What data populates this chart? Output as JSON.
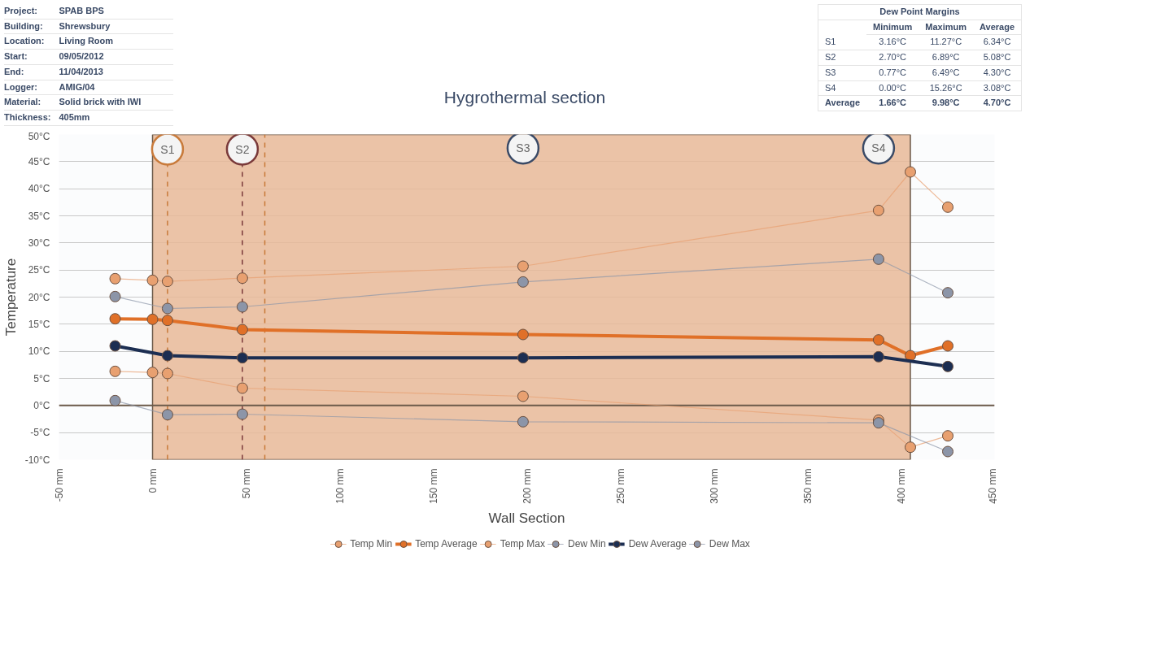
{
  "chart_data": {
    "type": "line",
    "title": "Hygrothermal section",
    "xlabel": "Wall Section",
    "ylabel": "Temperature",
    "xlim": [
      -50,
      450
    ],
    "ylim": [
      -10,
      50
    ],
    "xticks": [
      {
        "value": -50,
        "label": "-50 mm"
      },
      {
        "value": 0,
        "label": "0 mm"
      },
      {
        "value": 50,
        "label": "50 mm"
      },
      {
        "value": 100,
        "label": "100 mm"
      },
      {
        "value": 150,
        "label": "150 mm"
      },
      {
        "value": 200,
        "label": "200 mm"
      },
      {
        "value": 250,
        "label": "250 mm"
      },
      {
        "value": 300,
        "label": "300 mm"
      },
      {
        "value": 350,
        "label": "350 mm"
      },
      {
        "value": 400,
        "label": "400 mm"
      },
      {
        "value": 450,
        "label": "450 mm"
      }
    ],
    "yticks": [
      {
        "value": -10,
        "label": "-10°C"
      },
      {
        "value": -5,
        "label": "-5°C"
      },
      {
        "value": 0,
        "label": "0°C"
      },
      {
        "value": 5,
        "label": "5°C"
      },
      {
        "value": 10,
        "label": "10°C"
      },
      {
        "value": 15,
        "label": "15°C"
      },
      {
        "value": 20,
        "label": "20°C"
      },
      {
        "value": 25,
        "label": "25°C"
      },
      {
        "value": 30,
        "label": "30°C"
      },
      {
        "value": 35,
        "label": "35°C"
      },
      {
        "value": 40,
        "label": "40°C"
      },
      {
        "value": 45,
        "label": "45°C"
      },
      {
        "value": 50,
        "label": "50°C"
      }
    ],
    "grid": "y",
    "legend": "bottom",
    "marker": "circle",
    "line_style": "solid",
    "series": [
      {
        "name": "Temp Min",
        "color": "#e8a070",
        "x": [
          -20,
          0,
          8,
          48,
          198,
          388,
          405,
          425
        ],
        "values": [
          6.3,
          6.1,
          5.9,
          3.2,
          1.7,
          -2.7,
          -7.7,
          -5.6
        ]
      },
      {
        "name": "Temp Average",
        "color": "#e07028",
        "x": [
          -20,
          0,
          8,
          48,
          198,
          388,
          405,
          425
        ],
        "values": [
          16.0,
          15.9,
          15.7,
          14.0,
          13.1,
          12.1,
          9.2,
          11.0
        ]
      },
      {
        "name": "Temp Max",
        "color": "#e8a070",
        "x": [
          -20,
          0,
          8,
          48,
          198,
          388,
          405,
          425
        ],
        "values": [
          23.4,
          23.1,
          22.9,
          23.5,
          25.7,
          36.0,
          43.1,
          36.6
        ]
      },
      {
        "name": "Dew Min",
        "color": "#8c95a8",
        "x": [
          -20,
          8,
          48,
          198,
          388,
          425
        ],
        "values": [
          0.9,
          -1.7,
          -1.6,
          -3.0,
          -3.2,
          -8.5
        ]
      },
      {
        "name": "Dew Average",
        "color": "#1c2e52",
        "x": [
          -20,
          8,
          48,
          198,
          388,
          425
        ],
        "values": [
          11.0,
          9.2,
          8.8,
          8.8,
          9.0,
          7.2
        ]
      },
      {
        "name": "Dew Max",
        "color": "#8c95a8",
        "x": [
          -20,
          8,
          48,
          198,
          388,
          425
        ],
        "values": [
          20.1,
          17.9,
          18.2,
          22.8,
          27.0,
          20.8
        ]
      }
    ],
    "bands": [
      {
        "axis": "x",
        "from": 0,
        "to": 405,
        "color": "#e8b898"
      }
    ],
    "ref_lines": [
      {
        "axis": "x",
        "value": 8,
        "label": "S1",
        "color": "#c87a3a",
        "line_style": "dashed"
      },
      {
        "axis": "x",
        "value": 48,
        "label": "S2",
        "color": "#7a3a3a",
        "line_style": "dashed"
      },
      {
        "axis": "x",
        "value": 60,
        "color": "#c87a3a",
        "line_style": "dashed"
      },
      {
        "axis": "y",
        "value": 0,
        "color": "#6b5a4a",
        "line_style": "solid"
      }
    ],
    "annotations": [
      "Project: SPAB BPS",
      "Building: Shrewsbury",
      "Location: Living Room",
      "Start: 09/05/2012",
      "End: 11/04/2013",
      "Logger: AMIG/04",
      "Material: Solid brick with IWI",
      "Thickness: 405mm",
      "Dew Point Margins",
      "Minimum",
      "Maximum",
      "Average",
      "S1",
      "3.16°C",
      "11.27°C",
      "6.34°C",
      "S2",
      "2.70°C",
      "6.89°C",
      "5.08°C",
      "S3",
      "0.77°C",
      "6.49°C",
      "4.30°C",
      "S4",
      "0.00°C",
      "15.26°C",
      "3.08°C",
      "Average",
      "1.66°C",
      "9.98°C",
      "4.70°C",
      {
        "text": "S3",
        "x": 198,
        "y": 47.5
      },
      {
        "text": "S4",
        "x": 388,
        "y": 47.5
      }
    ]
  }
}
